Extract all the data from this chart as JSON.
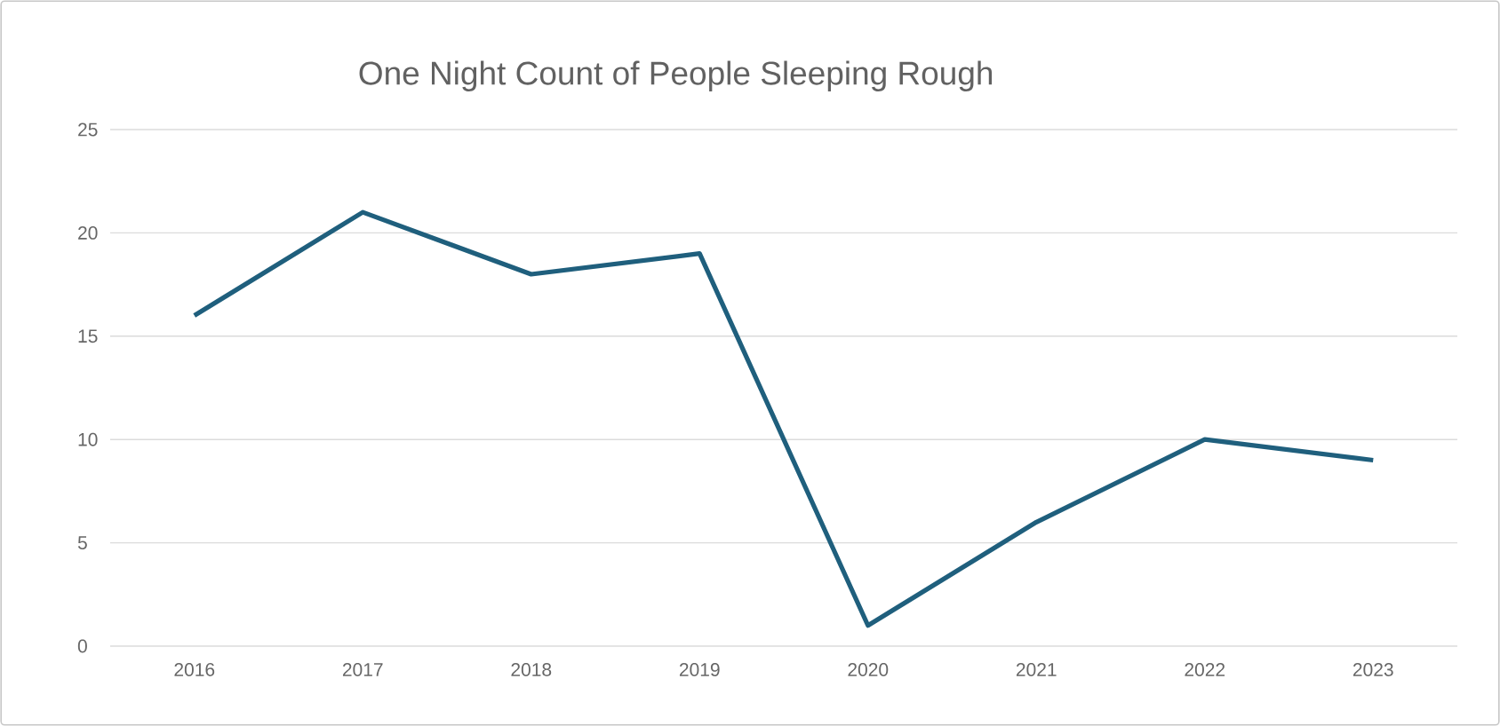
{
  "chart_data": {
    "type": "line",
    "title": "One Night Count of People Sleeping Rough",
    "categories": [
      "2016",
      "2017",
      "2018",
      "2019",
      "2020",
      "2021",
      "2022",
      "2023"
    ],
    "values": [
      16,
      21,
      18,
      19,
      1,
      6,
      10,
      9
    ],
    "color": "#1f5f7d",
    "ylim": [
      0,
      25
    ],
    "yticks": [
      0,
      5,
      10,
      15,
      20,
      25
    ],
    "grid": "y",
    "line_style": "solid"
  }
}
